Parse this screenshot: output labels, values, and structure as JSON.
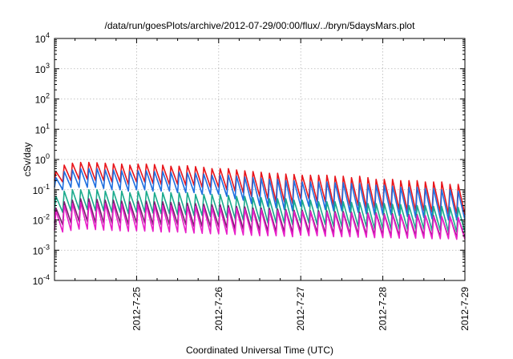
{
  "chart_data": {
    "type": "line",
    "title": "/data/run/goesPlots/archive/2012-07-29/00:00/flux/../bryn/5daysMars.plot",
    "xlabel": "Coordinated Universal Time (UTC)",
    "ylabel": "cSv/day",
    "y_scale": "log",
    "ylim": [
      0.0001,
      10000
    ],
    "xlim": [
      "2012-07-24T00:00",
      "2012-07-29T00:00"
    ],
    "grid": true,
    "legend": "none",
    "x_ticks": [
      "2012-7-25",
      "2012-7-26",
      "2012-7-27",
      "2012-7-28",
      "2012-7-29"
    ],
    "y_ticks": [
      {
        "base": "10",
        "exp": "-4"
      },
      {
        "base": "10",
        "exp": "-3"
      },
      {
        "base": "10",
        "exp": "-2"
      },
      {
        "base": "10",
        "exp": "-1"
      },
      {
        "base": "10",
        "exp": "0"
      },
      {
        "base": "10",
        "exp": "1"
      },
      {
        "base": "10",
        "exp": "2"
      },
      {
        "base": "10",
        "exp": "3"
      },
      {
        "base": "10",
        "exp": "4"
      }
    ],
    "cycles_per_day": 10,
    "x": [
      "2012-07-24T00:00",
      "2012-07-24T02:24",
      "2012-07-24T04:48",
      "2012-07-24T07:12",
      "2012-07-24T09:36",
      "2012-07-24T12:00",
      "2012-07-24T14:24",
      "2012-07-24T16:48",
      "2012-07-24T19:12",
      "2012-07-24T21:36",
      "2012-07-25T00:00",
      "2012-07-25T02:24",
      "2012-07-25T04:48",
      "2012-07-25T07:12",
      "2012-07-25T09:36",
      "2012-07-25T12:00",
      "2012-07-25T14:24",
      "2012-07-25T16:48",
      "2012-07-25T19:12",
      "2012-07-25T21:36",
      "2012-07-26T00:00",
      "2012-07-26T02:24",
      "2012-07-26T04:48",
      "2012-07-26T07:12",
      "2012-07-26T09:36",
      "2012-07-26T12:00",
      "2012-07-26T14:24",
      "2012-07-26T16:48",
      "2012-07-26T19:12",
      "2012-07-26T21:36",
      "2012-07-27T00:00",
      "2012-07-27T02:24",
      "2012-07-27T04:48",
      "2012-07-27T07:12",
      "2012-07-27T09:36",
      "2012-07-27T12:00",
      "2012-07-27T14:24",
      "2012-07-27T16:48",
      "2012-07-27T19:12",
      "2012-07-27T21:36",
      "2012-07-28T00:00",
      "2012-07-28T02:24",
      "2012-07-28T04:48",
      "2012-07-28T07:12",
      "2012-07-28T09:36",
      "2012-07-28T12:00",
      "2012-07-28T14:24",
      "2012-07-28T16:48",
      "2012-07-28T19:12",
      "2012-07-28T21:36",
      "2012-07-29T00:00"
    ],
    "series": [
      {
        "color": "#e8141a",
        "peaks": [
          0.4,
          0.65,
          0.75,
          0.8,
          0.8,
          0.78,
          0.75,
          0.72,
          0.7,
          0.65,
          0.7,
          0.7,
          0.68,
          0.65,
          0.6,
          0.6,
          0.62,
          0.58,
          0.55,
          0.5,
          0.5,
          0.5,
          0.45,
          0.42,
          0.4,
          0.38,
          0.35,
          0.35,
          0.33,
          0.32,
          0.3,
          0.3,
          0.3,
          0.3,
          0.28,
          0.28,
          0.25,
          0.28,
          0.25,
          0.22,
          0.22,
          0.22,
          0.2,
          0.2,
          0.2,
          0.18,
          0.18,
          0.18,
          0.15,
          0.15,
          0.14
        ],
        "troughs": [
          0.2,
          0.18,
          0.2,
          0.22,
          0.22,
          0.2,
          0.2,
          0.18,
          0.18,
          0.15,
          0.18,
          0.18,
          0.16,
          0.15,
          0.15,
          0.15,
          0.14,
          0.14,
          0.12,
          0.12,
          0.12,
          0.1,
          0.09,
          0.08,
          0.06,
          0.06,
          0.05,
          0.04,
          0.04,
          0.035,
          0.05,
          0.05,
          0.04,
          0.04,
          0.03,
          0.03,
          0.03,
          0.03,
          0.025,
          0.025,
          0.025,
          0.025,
          0.022,
          0.02,
          0.02,
          0.02,
          0.018,
          0.018,
          0.016,
          0.016,
          0.015
        ]
      },
      {
        "color": "#1f6fe0",
        "peaks": [
          0.25,
          0.4,
          0.45,
          0.5,
          0.5,
          0.5,
          0.45,
          0.45,
          0.42,
          0.4,
          0.42,
          0.42,
          0.4,
          0.4,
          0.38,
          0.38,
          0.36,
          0.35,
          0.33,
          0.3,
          0.3,
          0.3,
          0.28,
          0.26,
          0.25,
          0.24,
          0.22,
          0.22,
          0.2,
          0.2,
          0.18,
          0.18,
          0.18,
          0.18,
          0.17,
          0.17,
          0.16,
          0.16,
          0.15,
          0.14,
          0.14,
          0.13,
          0.12,
          0.12,
          0.12,
          0.11,
          0.11,
          0.1,
          0.1,
          0.09,
          0.09
        ],
        "troughs": [
          0.12,
          0.1,
          0.12,
          0.12,
          0.12,
          0.12,
          0.11,
          0.1,
          0.1,
          0.09,
          0.1,
          0.1,
          0.09,
          0.09,
          0.09,
          0.08,
          0.08,
          0.08,
          0.07,
          0.07,
          0.07,
          0.06,
          0.05,
          0.045,
          0.035,
          0.03,
          0.028,
          0.025,
          0.022,
          0.02,
          0.028,
          0.028,
          0.025,
          0.022,
          0.02,
          0.02,
          0.018,
          0.018,
          0.016,
          0.015,
          0.015,
          0.015,
          0.014,
          0.013,
          0.012,
          0.012,
          0.011,
          0.011,
          0.01,
          0.01,
          0.01
        ]
      },
      {
        "color": "#1aaa8c",
        "peaks": [
          0.06,
          0.09,
          0.1,
          0.1,
          0.1,
          0.1,
          0.09,
          0.09,
          0.09,
          0.08,
          0.09,
          0.09,
          0.08,
          0.08,
          0.08,
          0.08,
          0.08,
          0.07,
          0.07,
          0.07,
          0.07,
          0.065,
          0.06,
          0.06,
          0.055,
          0.055,
          0.05,
          0.05,
          0.05,
          0.045,
          0.045,
          0.045,
          0.04,
          0.04,
          0.04,
          0.04,
          0.038,
          0.038,
          0.035,
          0.035,
          0.035,
          0.033,
          0.032,
          0.03,
          0.03,
          0.03,
          0.028,
          0.028,
          0.026,
          0.026,
          0.025
        ],
        "troughs": [
          0.02,
          0.018,
          0.02,
          0.022,
          0.022,
          0.02,
          0.02,
          0.018,
          0.018,
          0.016,
          0.018,
          0.018,
          0.017,
          0.016,
          0.016,
          0.015,
          0.015,
          0.014,
          0.014,
          0.013,
          0.013,
          0.012,
          0.011,
          0.01,
          0.009,
          0.009,
          0.008,
          0.008,
          0.008,
          0.007,
          0.008,
          0.008,
          0.007,
          0.007,
          0.006,
          0.006,
          0.006,
          0.006,
          0.006,
          0.005,
          0.005,
          0.005,
          0.005,
          0.005,
          0.005,
          0.005,
          0.0045,
          0.0045,
          0.004,
          0.004,
          0.004
        ]
      },
      {
        "color": "#7a1e6e",
        "peaks": [
          0.025,
          0.04,
          0.045,
          0.05,
          0.05,
          0.048,
          0.045,
          0.045,
          0.042,
          0.04,
          0.042,
          0.042,
          0.04,
          0.04,
          0.038,
          0.038,
          0.036,
          0.035,
          0.033,
          0.032,
          0.032,
          0.03,
          0.028,
          0.027,
          0.025,
          0.025,
          0.024,
          0.023,
          0.022,
          0.021,
          0.021,
          0.02,
          0.02,
          0.02,
          0.019,
          0.019,
          0.018,
          0.018,
          0.017,
          0.017,
          0.016,
          0.016,
          0.015,
          0.015,
          0.015,
          0.014,
          0.014,
          0.013,
          0.013,
          0.012,
          0.012
        ],
        "troughs": [
          0.008,
          0.007,
          0.008,
          0.009,
          0.009,
          0.008,
          0.008,
          0.008,
          0.008,
          0.007,
          0.008,
          0.008,
          0.007,
          0.007,
          0.007,
          0.007,
          0.007,
          0.006,
          0.006,
          0.006,
          0.006,
          0.0055,
          0.005,
          0.005,
          0.0045,
          0.0045,
          0.0042,
          0.004,
          0.004,
          0.0038,
          0.0042,
          0.004,
          0.0038,
          0.0036,
          0.0035,
          0.0035,
          0.0034,
          0.0034,
          0.0032,
          0.0032,
          0.0032,
          0.003,
          0.003,
          0.003,
          0.003,
          0.003,
          0.0028,
          0.0028,
          0.0027,
          0.0027,
          0.0026
        ]
      },
      {
        "color": "#e81ec8",
        "peaks": [
          0.02,
          0.03,
          0.035,
          0.038,
          0.038,
          0.036,
          0.035,
          0.034,
          0.033,
          0.032,
          0.033,
          0.032,
          0.031,
          0.03,
          0.03,
          0.029,
          0.028,
          0.028,
          0.027,
          0.026,
          0.026,
          0.025,
          0.024,
          0.023,
          0.022,
          0.022,
          0.021,
          0.02,
          0.02,
          0.019,
          0.019,
          0.019,
          0.018,
          0.018,
          0.017,
          0.017,
          0.017,
          0.016,
          0.016,
          0.016,
          0.015,
          0.015,
          0.015,
          0.014,
          0.014,
          0.014,
          0.013,
          0.013,
          0.013,
          0.012,
          0.012
        ],
        "troughs": [
          0.0045,
          0.004,
          0.0045,
          0.005,
          0.005,
          0.0048,
          0.0046,
          0.0045,
          0.0044,
          0.0042,
          0.0044,
          0.0043,
          0.0042,
          0.004,
          0.004,
          0.004,
          0.0038,
          0.0037,
          0.0036,
          0.0035,
          0.0035,
          0.0034,
          0.0033,
          0.0032,
          0.0031,
          0.003,
          0.003,
          0.003,
          0.0029,
          0.0028,
          0.0031,
          0.003,
          0.003,
          0.0029,
          0.0028,
          0.0028,
          0.0028,
          0.0027,
          0.0027,
          0.0026,
          0.0026,
          0.0026,
          0.0025,
          0.0025,
          0.0025,
          0.0025,
          0.0024,
          0.0024,
          0.0024,
          0.0023,
          0.0023
        ]
      }
    ]
  }
}
